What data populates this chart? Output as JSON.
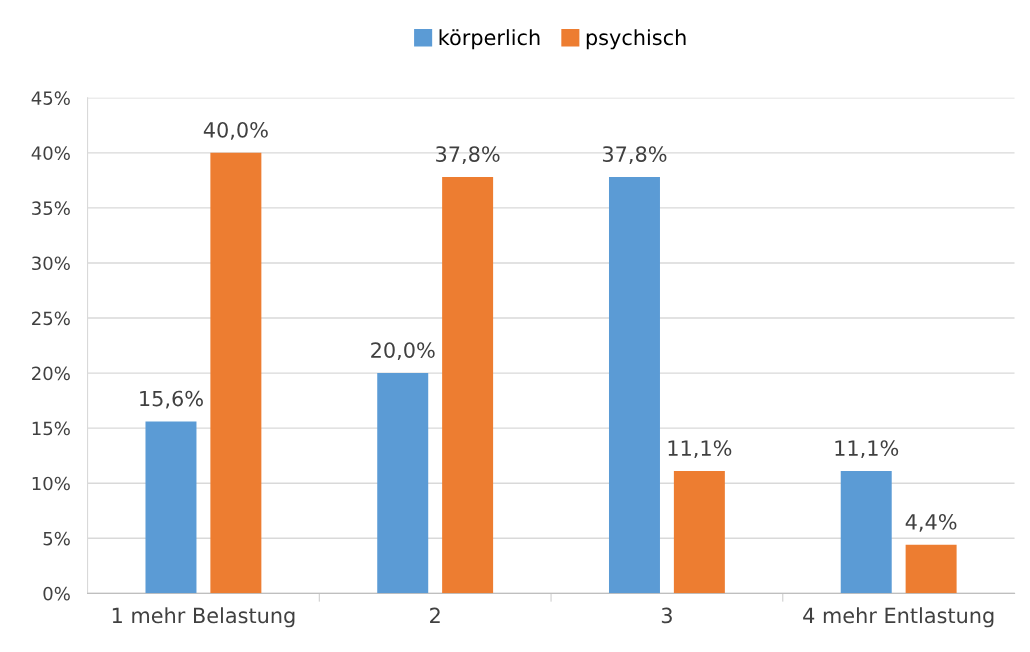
{
  "chart_data": {
    "type": "bar",
    "categories": [
      "1 mehr Belastung",
      "2",
      "3",
      "4 mehr Entlastung"
    ],
    "series": [
      {
        "name": "körperlich",
        "color": "#5b9bd5",
        "values": [
          15.6,
          20.0,
          37.8,
          11.1
        ],
        "value_labels": [
          "15,6%",
          "20,0%",
          "37,8%",
          "11,1%"
        ]
      },
      {
        "name": "psychisch",
        "color": "#ed7d31",
        "values": [
          40.0,
          37.8,
          11.1,
          4.4
        ],
        "value_labels": [
          "40,0%",
          "37,8%",
          "11,1%",
          "4,4%"
        ]
      }
    ],
    "ylim": [
      0,
      45
    ],
    "yticks": [
      {
        "value": 0,
        "label": "0%"
      },
      {
        "value": 5,
        "label": "5%"
      },
      {
        "value": 10,
        "label": "10%"
      },
      {
        "value": 15,
        "label": "15%"
      },
      {
        "value": 20,
        "label": "20%"
      },
      {
        "value": 25,
        "label": "25%"
      },
      {
        "value": 30,
        "label": "30%"
      },
      {
        "value": 35,
        "label": "35%"
      },
      {
        "value": 40,
        "label": "40%"
      },
      {
        "value": 45,
        "label": "45%"
      }
    ],
    "grid": "y",
    "legend": "top"
  }
}
